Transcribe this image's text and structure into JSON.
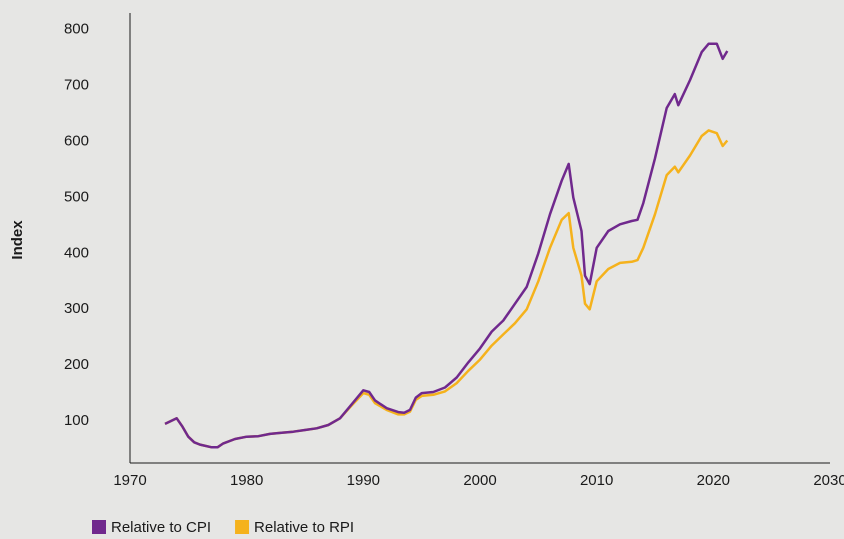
{
  "chart_data": {
    "type": "line",
    "y_label": "Index",
    "x": [
      1973,
      1974,
      1974.5,
      1975,
      1975.5,
      1976,
      1977,
      1977.5,
      1978,
      1979,
      1980,
      1981,
      1982,
      1983,
      1984,
      1985,
      1986,
      1987,
      1988,
      1989,
      1990,
      1990.5,
      1991,
      1992,
      1993,
      1993.5,
      1994,
      1994.5,
      1995,
      1996,
      1997,
      1998,
      1999,
      2000,
      2001,
      2002,
      2003,
      2004,
      2005,
      2006,
      2007,
      2007.6,
      2008,
      2008.7,
      2009,
      2009.4,
      2010,
      2011,
      2012,
      2013,
      2013.5,
      2014,
      2015,
      2016,
      2016.7,
      2017,
      2018,
      2019,
      2019.6,
      2020.3,
      2020.8,
      2021.2
    ],
    "series": [
      {
        "name": "Relative to CPI",
        "color": "#70298d",
        "values": [
          95,
          105,
          90,
          72,
          62,
          58,
          53,
          53,
          60,
          68,
          72,
          73,
          77,
          79,
          81,
          84,
          87,
          93,
          105,
          130,
          155,
          152,
          137,
          123,
          116,
          115,
          120,
          142,
          150,
          152,
          160,
          178,
          205,
          230,
          260,
          280,
          310,
          340,
          400,
          470,
          530,
          560,
          500,
          440,
          360,
          345,
          410,
          440,
          452,
          458,
          460,
          490,
          570,
          660,
          685,
          665,
          710,
          760,
          775,
          775,
          748,
          762
        ]
      },
      {
        "name": "Relative to RPI",
        "color": "#f5b21c",
        "values": [
          95,
          105,
          90,
          72,
          62,
          58,
          53,
          53,
          60,
          68,
          72,
          73,
          77,
          79,
          81,
          84,
          87,
          93,
          105,
          128,
          150,
          147,
          132,
          120,
          112,
          112,
          117,
          138,
          145,
          147,
          153,
          168,
          190,
          210,
          235,
          255,
          275,
          300,
          350,
          410,
          460,
          472,
          410,
          360,
          310,
          300,
          350,
          372,
          383,
          385,
          388,
          410,
          470,
          540,
          555,
          545,
          575,
          610,
          620,
          615,
          592,
          602
        ]
      }
    ],
    "xlim": [
      1970,
      2030
    ],
    "xticks": [
      1970,
      1980,
      1990,
      2000,
      2010,
      2020,
      2030
    ],
    "ylim": [
      25,
      830
    ],
    "yticks": [
      100,
      200,
      300,
      400,
      500,
      600,
      700,
      800
    ],
    "legend": "bottom-left"
  }
}
